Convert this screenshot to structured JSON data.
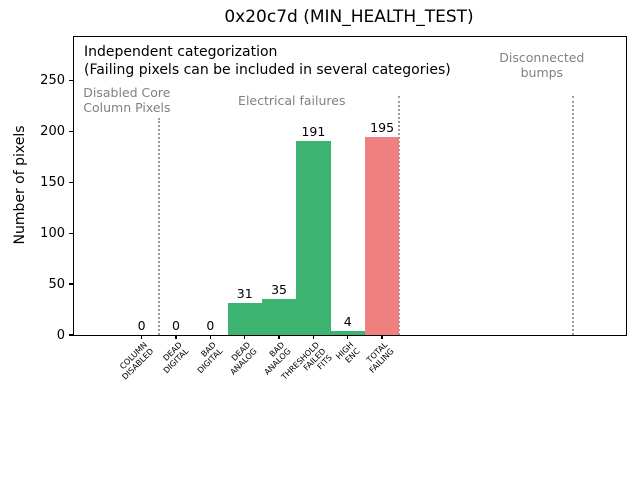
{
  "chart_data": {
    "type": "bar",
    "title": "0x20c7d (MIN_HEALTH_TEST)",
    "xlabel": "",
    "ylabel": "Number of pixels",
    "categories": [
      "COLUMN\nDISABLED",
      "DEAD\nDIGITAL",
      "BAD\nDIGITAL",
      "DEAD\nANALOG",
      "BAD\nANALOG",
      "THRESHOLD\nFAILED\nFITS",
      "HIGH\nENC",
      "TOTAL\nFAILING"
    ],
    "values": [
      0,
      0,
      0,
      31,
      35,
      191,
      4,
      195
    ],
    "value_labels": [
      "0",
      "0",
      "0",
      "31",
      "35",
      "191",
      "4",
      "195"
    ],
    "bar_colors": [
      "#3cb371",
      "#3cb371",
      "#3cb371",
      "#3cb371",
      "#3cb371",
      "#3cb371",
      "#3cb371",
      "#f08080"
    ],
    "bar_width": 1.0,
    "yticks": [
      0,
      50,
      100,
      150,
      200,
      250
    ],
    "ylim": [
      0,
      293
    ],
    "xlim": [
      -1.97,
      14.1
    ],
    "grid": false,
    "legend": null,
    "annotations": {
      "note_line1": "Independent categorization",
      "note_line2": "(Failing pixels can be included in several categories)",
      "sections": [
        {
          "label": "Disabled Core\nColumn Pixels",
          "x": -1.7,
          "align": "left",
          "top": 49
        },
        {
          "label": "Electrical failures",
          "x": 4.37,
          "align": "center",
          "top": 57
        },
        {
          "label": "Disconnected\nbumps",
          "x": 11.65,
          "align": "center",
          "top": 14
        }
      ],
      "separators": [
        {
          "x": 0.5,
          "top": 81
        },
        {
          "x": 7.5,
          "top": 59
        },
        {
          "x": 12.55,
          "top": 59
        }
      ]
    }
  },
  "colors": {
    "bar_green": "#3cb371",
    "bar_red": "#f08080",
    "section_text": "#818181",
    "separator": "#9b9b9b",
    "axis": "#000000"
  }
}
